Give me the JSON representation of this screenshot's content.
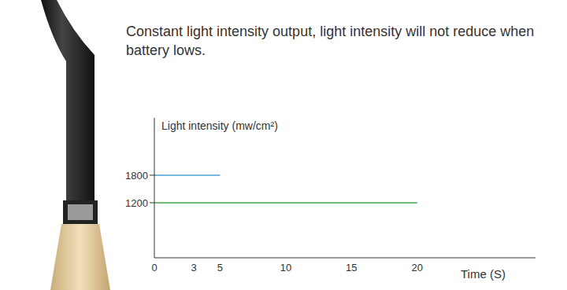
{
  "chart_data": {
    "type": "line",
    "title": "Constant light intensity output, light intensity will not reduce when battery lows.",
    "x_label": "Time (S)",
    "y_label": "Light intensity (mw/cm²)",
    "xlim": [
      0,
      29
    ],
    "xticks": [
      0,
      3,
      5,
      10,
      15,
      20
    ],
    "ylim": [
      0,
      3050
    ],
    "yticks": [
      1200,
      1800
    ],
    "grid": false,
    "series": [
      {
        "color": "#4a9fd8",
        "x": [
          0,
          5
        ],
        "values": [
          1800,
          1800
        ]
      },
      {
        "color": "#3daa4a",
        "x": [
          0,
          20
        ],
        "values": [
          1200,
          1200
        ]
      }
    ]
  }
}
